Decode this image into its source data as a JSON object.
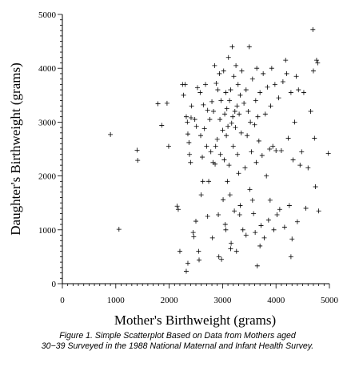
{
  "caption": {
    "line1": "Figure 1.  Simple Scatterplot Based on Data from Mothers aged",
    "line2": "30−39 Surveyed in the 1988 National Maternal and Infant Health Survey."
  },
  "chart_data": {
    "type": "scatter",
    "xlabel": "Mother's Birthweight (grams)",
    "ylabel": "Daughter's Birthweight (grams)",
    "xlim": [
      0,
      5000
    ],
    "ylim": [
      0,
      5000
    ],
    "xticks": [
      "0",
      "1000",
      "2000",
      "3000",
      "4000",
      "5000"
    ],
    "yticks": [
      "0",
      "1000",
      "2000",
      "3000",
      "4000",
      "5000"
    ],
    "grid": false,
    "marker": "plus",
    "points": [
      [
        900,
        2770
      ],
      [
        1060,
        1010
      ],
      [
        1400,
        2480
      ],
      [
        1410,
        2290
      ],
      [
        1790,
        3340
      ],
      [
        1860,
        2940
      ],
      [
        1960,
        3350
      ],
      [
        1990,
        2550
      ],
      [
        2150,
        1440
      ],
      [
        2170,
        1380
      ],
      [
        2250,
        3700
      ],
      [
        2270,
        3500
      ],
      [
        2300,
        3700
      ],
      [
        2320,
        3100
      ],
      [
        2340,
        3000
      ],
      [
        2350,
        2780
      ],
      [
        2370,
        2620
      ],
      [
        2380,
        2400
      ],
      [
        2400,
        2250
      ],
      [
        2410,
        3080
      ],
      [
        2420,
        3300
      ],
      [
        2450,
        950
      ],
      [
        2460,
        870
      ],
      [
        2480,
        3050
      ],
      [
        2500,
        1160
      ],
      [
        2510,
        2920
      ],
      [
        2530,
        3640
      ],
      [
        2550,
        600
      ],
      [
        2560,
        440
      ],
      [
        2580,
        3550
      ],
      [
        2590,
        2750
      ],
      [
        2600,
        1650
      ],
      [
        2620,
        2350
      ],
      [
        2640,
        3320
      ],
      [
        2660,
        2880
      ],
      [
        2680,
        3700
      ],
      [
        2700,
        2550
      ],
      [
        2720,
        3220
      ],
      [
        2740,
        1900
      ],
      [
        2760,
        3050
      ],
      [
        2780,
        2450
      ],
      [
        2800,
        3380
      ],
      [
        2810,
        850
      ],
      [
        2830,
        3200
      ],
      [
        2850,
        4050
      ],
      [
        2860,
        2220
      ],
      [
        2880,
        3720
      ],
      [
        2900,
        2680
      ],
      [
        2910,
        3600
      ],
      [
        2920,
        1280
      ],
      [
        2930,
        500
      ],
      [
        2940,
        3900
      ],
      [
        2950,
        3050
      ],
      [
        2960,
        2400
      ],
      [
        2970,
        3400
      ],
      [
        2980,
        450
      ],
      [
        3000,
        2850
      ],
      [
        3010,
        1560
      ],
      [
        3020,
        3950
      ],
      [
        3030,
        2300
      ],
      [
        3040,
        3150
      ],
      [
        3050,
        1100
      ],
      [
        3060,
        3550
      ],
      [
        3070,
        2750
      ],
      [
        3080,
        3250
      ],
      [
        3090,
        1900
      ],
      [
        3100,
        2920
      ],
      [
        3110,
        4200
      ],
      [
        3120,
        2200
      ],
      [
        3130,
        3400
      ],
      [
        3140,
        1650
      ],
      [
        3150,
        3600
      ],
      [
        3160,
        750
      ],
      [
        3170,
        2980
      ],
      [
        3180,
        4400
      ],
      [
        3190,
        3100
      ],
      [
        3200,
        2550
      ],
      [
        3210,
        3850
      ],
      [
        3220,
        1350
      ],
      [
        3230,
        3200
      ],
      [
        3240,
        2900
      ],
      [
        3250,
        4050
      ],
      [
        3260,
        600
      ],
      [
        3270,
        3300
      ],
      [
        3280,
        2400
      ],
      [
        3290,
        3700
      ],
      [
        3300,
        2050
      ],
      [
        3310,
        3150
      ],
      [
        3320,
        1280
      ],
      [
        3330,
        3500
      ],
      [
        3350,
        2800
      ],
      [
        3360,
        3950
      ],
      [
        3380,
        1000
      ],
      [
        3400,
        3350
      ],
      [
        3420,
        2150
      ],
      [
        3440,
        3600
      ],
      [
        3460,
        2750
      ],
      [
        3480,
        3200
      ],
      [
        3500,
        4400
      ],
      [
        3510,
        1750
      ],
      [
        3520,
        3000
      ],
      [
        3540,
        2450
      ],
      [
        3560,
        3800
      ],
      [
        3580,
        1300
      ],
      [
        3600,
        2950
      ],
      [
        3610,
        950
      ],
      [
        3620,
        3400
      ],
      [
        3630,
        2250
      ],
      [
        3640,
        4000
      ],
      [
        3650,
        330
      ],
      [
        3660,
        3100
      ],
      [
        3680,
        2650
      ],
      [
        3700,
        3550
      ],
      [
        3720,
        1080
      ],
      [
        3740,
        2380
      ],
      [
        3760,
        3900
      ],
      [
        3780,
        850
      ],
      [
        3800,
        3150
      ],
      [
        3820,
        2000
      ],
      [
        3840,
        3650
      ],
      [
        3860,
        1180
      ],
      [
        3880,
        2500
      ],
      [
        3900,
        3300
      ],
      [
        3920,
        4000
      ],
      [
        3940,
        2550
      ],
      [
        3960,
        1000
      ],
      [
        3980,
        3700
      ],
      [
        4000,
        2470
      ],
      [
        4020,
        1280
      ],
      [
        4050,
        3450
      ],
      [
        4070,
        1380
      ],
      [
        4100,
        2470
      ],
      [
        4130,
        3750
      ],
      [
        4160,
        1050
      ],
      [
        4180,
        4150
      ],
      [
        4200,
        3900
      ],
      [
        4230,
        2700
      ],
      [
        4250,
        1450
      ],
      [
        4280,
        3550
      ],
      [
        4300,
        830
      ],
      [
        4320,
        2300
      ],
      [
        4350,
        3000
      ],
      [
        4380,
        3850
      ],
      [
        4400,
        1150
      ],
      [
        4420,
        3600
      ],
      [
        4450,
        2200
      ],
      [
        4480,
        2450
      ],
      [
        4520,
        3550
      ],
      [
        4560,
        1400
      ],
      [
        4600,
        2150
      ],
      [
        4650,
        3200
      ],
      [
        4690,
        4720
      ],
      [
        4700,
        3950
      ],
      [
        4720,
        2700
      ],
      [
        4740,
        1800
      ],
      [
        4760,
        4150
      ],
      [
        4780,
        4100
      ],
      [
        4800,
        1350
      ],
      [
        4980,
        2420
      ],
      [
        2200,
        600
      ],
      [
        2320,
        230
      ],
      [
        2350,
        380
      ],
      [
        2630,
        1900
      ],
      [
        2720,
        1250
      ],
      [
        2820,
        2250
      ],
      [
        2870,
        2550
      ],
      [
        3060,
        1000
      ],
      [
        3150,
        650
      ],
      [
        3330,
        1450
      ],
      [
        3440,
        900
      ],
      [
        3560,
        1550
      ],
      [
        3700,
        700
      ],
      [
        3890,
        1550
      ],
      [
        4280,
        500
      ]
    ]
  }
}
